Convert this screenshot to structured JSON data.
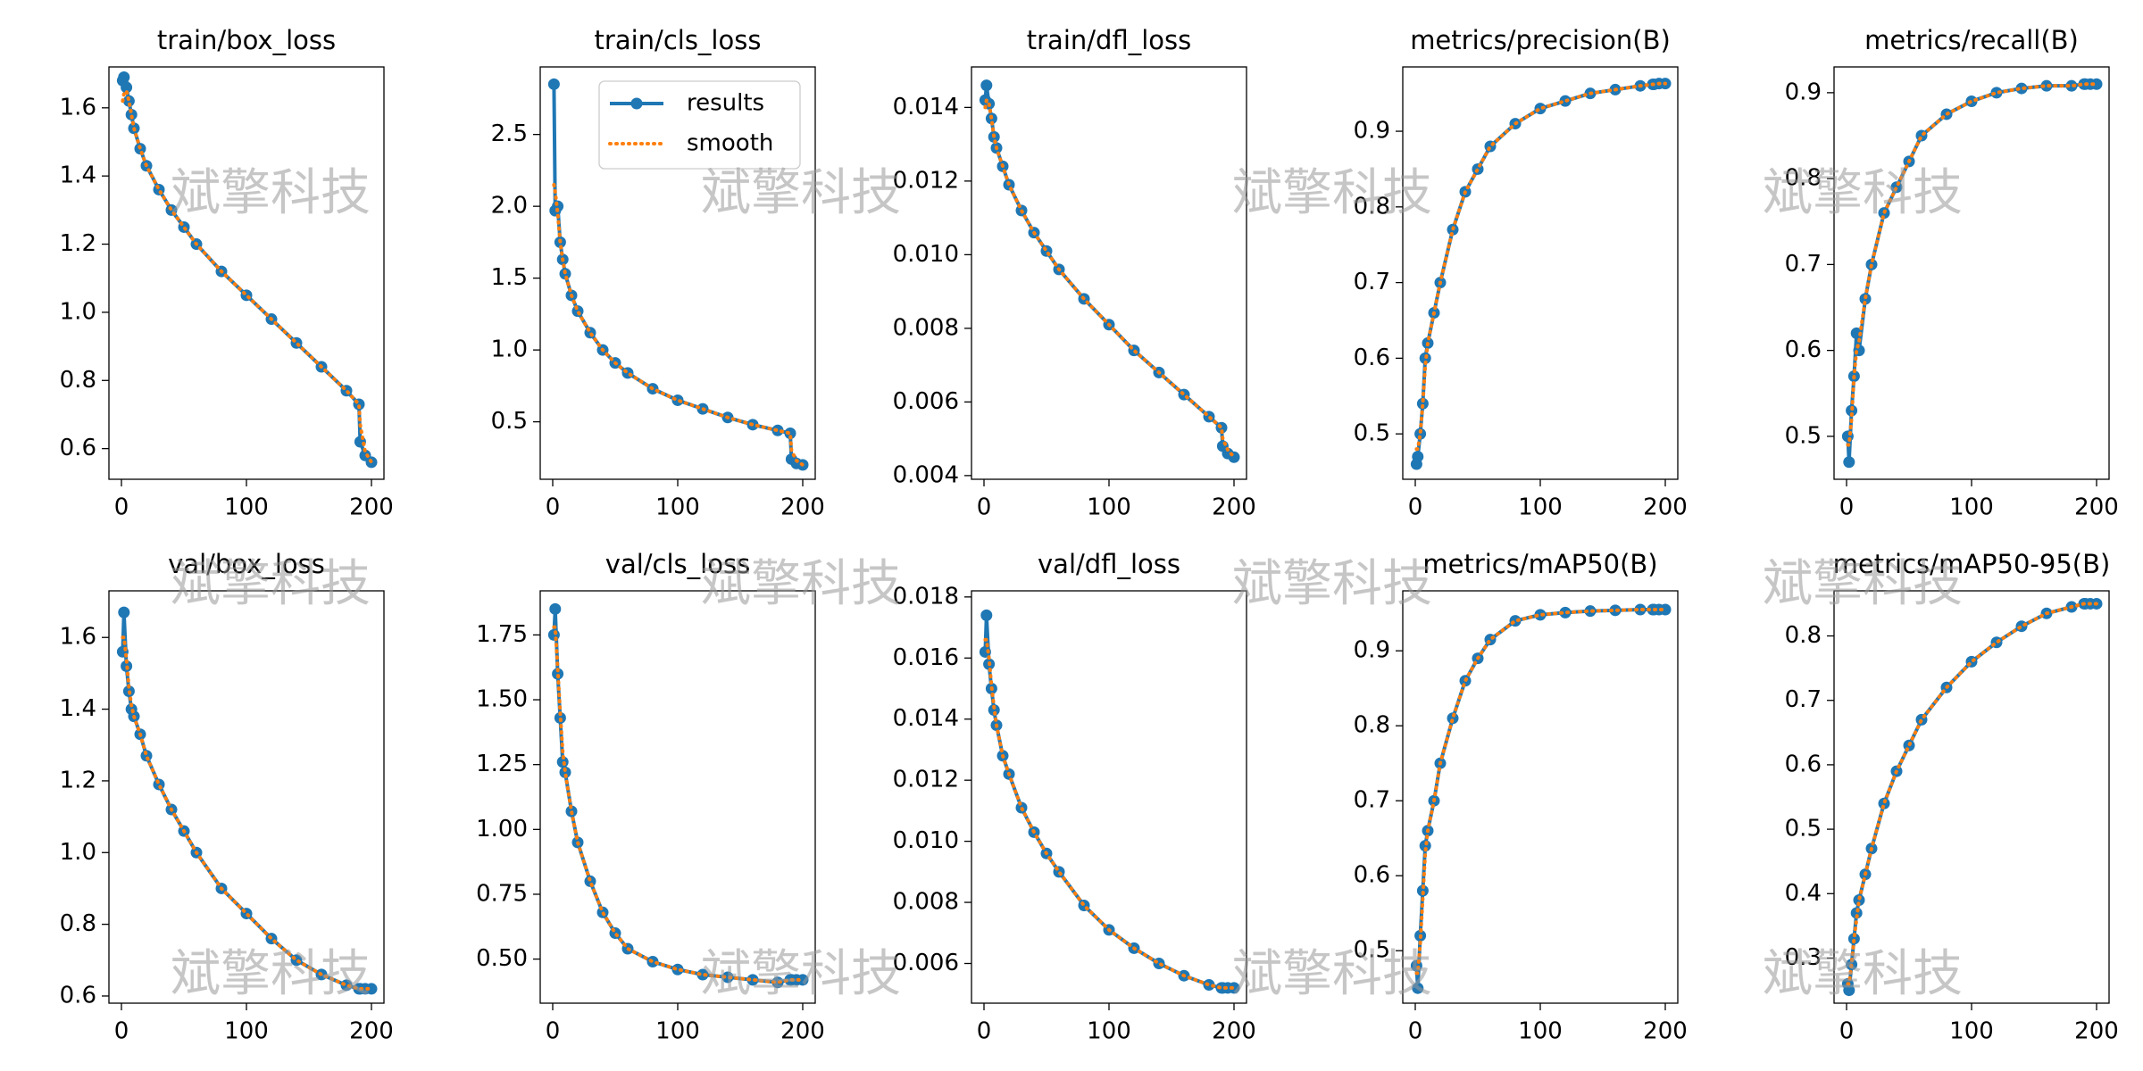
{
  "watermark": "斌擎科技",
  "chart_data": [
    {
      "type": "line",
      "title": "train/box_loss",
      "x": [
        1,
        2,
        4,
        6,
        8,
        10,
        15,
        20,
        30,
        40,
        50,
        60,
        80,
        100,
        120,
        140,
        160,
        180,
        190,
        191,
        195,
        200
      ],
      "xlim": [
        -10,
        210
      ],
      "xticks": [
        0,
        100,
        200
      ],
      "ylim": [
        0.51,
        1.72
      ],
      "yticks": [
        0.6,
        0.8,
        {
          "value": 1,
          "label": "1.0"
        },
        1.2,
        1.4,
        1.6
      ],
      "series": [
        {
          "color": "#1f77b4",
          "values": [
            1.68,
            1.69,
            1.66,
            1.62,
            1.58,
            1.54,
            1.48,
            1.43,
            1.36,
            1.3,
            1.25,
            1.2,
            1.12,
            1.05,
            0.98,
            0.91,
            0.84,
            0.77,
            0.73,
            0.62,
            0.58,
            0.56
          ]
        },
        {
          "color": "#ff7f0e",
          "values": [
            1.62,
            1.64,
            1.65,
            1.62,
            1.58,
            1.54,
            1.48,
            1.43,
            1.36,
            1.3,
            1.25,
            1.2,
            1.12,
            1.05,
            0.98,
            0.91,
            0.84,
            0.77,
            0.73,
            0.67,
            0.59,
            0.56
          ]
        }
      ]
    },
    {
      "type": "line",
      "title": "train/cls_loss",
      "legend": "upper right",
      "x": [
        1,
        2,
        4,
        6,
        8,
        10,
        15,
        20,
        30,
        40,
        50,
        60,
        80,
        100,
        120,
        140,
        160,
        180,
        190,
        191,
        195,
        200
      ],
      "xlim": [
        -10,
        210
      ],
      "xticks": [
        0,
        100,
        200
      ],
      "ylim": [
        0.1,
        2.97
      ],
      "yticks": [
        0.5,
        {
          "value": 1,
          "label": "1.0"
        },
        1.5,
        {
          "value": 2,
          "label": "2.0"
        },
        2.5
      ],
      "series": [
        {
          "name": "results",
          "color": "#1f77b4",
          "values": [
            2.85,
            1.97,
            2.0,
            1.75,
            1.63,
            1.53,
            1.38,
            1.27,
            1.12,
            1.0,
            0.91,
            0.84,
            0.73,
            0.65,
            0.59,
            0.53,
            0.48,
            0.44,
            0.42,
            0.24,
            0.21,
            0.2
          ]
        },
        {
          "name": "smooth",
          "color": "#ff7f0e",
          "values": [
            2.15,
            2.1,
            1.95,
            1.75,
            1.63,
            1.53,
            1.38,
            1.27,
            1.12,
            1.0,
            0.91,
            0.84,
            0.73,
            0.65,
            0.59,
            0.53,
            0.48,
            0.44,
            0.42,
            0.3,
            0.23,
            0.2
          ]
        }
      ]
    },
    {
      "type": "line",
      "title": "train/dfl_loss",
      "x": [
        1,
        2,
        4,
        6,
        8,
        10,
        15,
        20,
        30,
        40,
        50,
        60,
        80,
        100,
        120,
        140,
        160,
        180,
        190,
        191,
        195,
        200
      ],
      "xlim": [
        -10,
        210
      ],
      "xticks": [
        0,
        100,
        200
      ],
      "ylim": [
        0.0039,
        0.0151
      ],
      "yticks": [
        0.004,
        0.006,
        0.008,
        {
          "value": 0.01,
          "label": "0.010"
        },
        0.012,
        0.014
      ],
      "series": [
        {
          "color": "#1f77b4",
          "values": [
            0.0142,
            0.0146,
            0.0141,
            0.0137,
            0.0132,
            0.0129,
            0.0124,
            0.0119,
            0.0112,
            0.0106,
            0.0101,
            0.0096,
            0.0088,
            0.0081,
            0.0074,
            0.0068,
            0.0062,
            0.0056,
            0.0053,
            0.0048,
            0.0046,
            0.0045
          ]
        },
        {
          "color": "#ff7f0e",
          "values": [
            0.014,
            0.0142,
            0.0141,
            0.0137,
            0.0132,
            0.0129,
            0.0124,
            0.0119,
            0.0112,
            0.0106,
            0.0101,
            0.0096,
            0.0088,
            0.0081,
            0.0074,
            0.0068,
            0.0062,
            0.0056,
            0.0053,
            0.005,
            0.0047,
            0.0045
          ]
        }
      ]
    },
    {
      "type": "line",
      "title": "metrics/precision(B)",
      "x": [
        1,
        2,
        4,
        6,
        8,
        10,
        15,
        20,
        30,
        40,
        50,
        60,
        80,
        100,
        120,
        140,
        160,
        180,
        190,
        191,
        195,
        200
      ],
      "xlim": [
        -10,
        210
      ],
      "xticks": [
        0,
        100,
        200
      ],
      "ylim": [
        0.44,
        0.985
      ],
      "yticks": [
        0.5,
        0.6,
        0.7,
        0.8,
        0.9
      ],
      "series": [
        {
          "color": "#1f77b4",
          "values": [
            0.46,
            0.47,
            0.5,
            0.54,
            0.6,
            0.62,
            0.66,
            0.7,
            0.77,
            0.82,
            0.85,
            0.88,
            0.91,
            0.93,
            0.94,
            0.95,
            0.955,
            0.96,
            0.962,
            0.962,
            0.963,
            0.963
          ]
        },
        {
          "color": "#ff7f0e",
          "values": [
            0.48,
            0.48,
            0.5,
            0.54,
            0.59,
            0.62,
            0.66,
            0.7,
            0.77,
            0.82,
            0.85,
            0.88,
            0.91,
            0.93,
            0.94,
            0.95,
            0.955,
            0.96,
            0.962,
            0.962,
            0.963,
            0.963
          ]
        }
      ]
    },
    {
      "type": "line",
      "title": "metrics/recall(B)",
      "x": [
        1,
        2,
        4,
        6,
        8,
        10,
        15,
        20,
        30,
        40,
        50,
        60,
        80,
        100,
        120,
        140,
        160,
        180,
        190,
        191,
        195,
        200
      ],
      "xlim": [
        -10,
        210
      ],
      "xticks": [
        0,
        100,
        200
      ],
      "ylim": [
        0.45,
        0.93
      ],
      "yticks": [
        0.5,
        0.6,
        0.7,
        0.8,
        0.9
      ],
      "series": [
        {
          "color": "#1f77b4",
          "values": [
            0.5,
            0.47,
            0.53,
            0.57,
            0.62,
            0.6,
            0.66,
            0.7,
            0.76,
            0.79,
            0.82,
            0.85,
            0.875,
            0.89,
            0.9,
            0.905,
            0.908,
            0.908,
            0.91,
            0.91,
            0.91,
            0.91
          ]
        },
        {
          "color": "#ff7f0e",
          "values": [
            0.49,
            0.49,
            0.52,
            0.57,
            0.6,
            0.61,
            0.66,
            0.7,
            0.76,
            0.79,
            0.82,
            0.85,
            0.875,
            0.89,
            0.9,
            0.905,
            0.908,
            0.908,
            0.91,
            0.91,
            0.91,
            0.91
          ]
        }
      ]
    },
    {
      "type": "line",
      "title": "val/box_loss",
      "x": [
        1,
        2,
        4,
        6,
        8,
        10,
        15,
        20,
        30,
        40,
        50,
        60,
        80,
        100,
        120,
        140,
        160,
        180,
        190,
        191,
        195,
        200
      ],
      "xlim": [
        -10,
        210
      ],
      "xticks": [
        0,
        100,
        200
      ],
      "ylim": [
        0.58,
        1.73
      ],
      "yticks": [
        0.6,
        0.8,
        {
          "value": 1,
          "label": "1.0"
        },
        1.2,
        1.4,
        1.6
      ],
      "series": [
        {
          "color": "#1f77b4",
          "values": [
            1.56,
            1.67,
            1.52,
            1.45,
            1.4,
            1.38,
            1.33,
            1.27,
            1.19,
            1.12,
            1.06,
            1.0,
            0.9,
            0.83,
            0.76,
            0.7,
            0.66,
            0.63,
            0.62,
            0.62,
            0.62,
            0.62
          ]
        },
        {
          "color": "#ff7f0e",
          "values": [
            1.6,
            1.6,
            1.54,
            1.46,
            1.41,
            1.38,
            1.33,
            1.27,
            1.19,
            1.12,
            1.06,
            1.0,
            0.9,
            0.83,
            0.76,
            0.7,
            0.66,
            0.63,
            0.62,
            0.62,
            0.62,
            0.62
          ]
        }
      ]
    },
    {
      "type": "line",
      "title": "val/cls_loss",
      "x": [
        1,
        2,
        4,
        6,
        8,
        10,
        15,
        20,
        30,
        40,
        50,
        60,
        80,
        100,
        120,
        140,
        160,
        180,
        190,
        191,
        195,
        200
      ],
      "xlim": [
        -10,
        210
      ],
      "xticks": [
        0,
        100,
        200
      ],
      "ylim": [
        0.33,
        1.92
      ],
      "yticks": [
        {
          "value": 0.5,
          "label": "0.50"
        },
        0.75,
        {
          "value": 1,
          "label": "1.00"
        },
        1.25,
        {
          "value": 1.5,
          "label": "1.50"
        },
        1.75
      ],
      "series": [
        {
          "color": "#1f77b4",
          "values": [
            1.75,
            1.85,
            1.6,
            1.43,
            1.26,
            1.22,
            1.07,
            0.95,
            0.8,
            0.68,
            0.6,
            0.54,
            0.49,
            0.46,
            0.44,
            0.43,
            0.42,
            0.41,
            0.42,
            0.42,
            0.42,
            0.42
          ]
        },
        {
          "color": "#ff7f0e",
          "values": [
            1.78,
            1.78,
            1.62,
            1.45,
            1.3,
            1.22,
            1.07,
            0.95,
            0.8,
            0.68,
            0.6,
            0.54,
            0.49,
            0.46,
            0.44,
            0.43,
            0.42,
            0.41,
            0.42,
            0.42,
            0.42,
            0.42
          ]
        }
      ]
    },
    {
      "type": "line",
      "title": "val/dfl_loss",
      "x": [
        1,
        2,
        4,
        6,
        8,
        10,
        15,
        20,
        30,
        40,
        50,
        60,
        80,
        100,
        120,
        140,
        160,
        180,
        190,
        191,
        195,
        200
      ],
      "xlim": [
        -10,
        210
      ],
      "xticks": [
        0,
        100,
        200
      ],
      "ylim": [
        0.0047,
        0.0182
      ],
      "yticks": [
        0.006,
        0.008,
        {
          "value": 0.01,
          "label": "0.010"
        },
        0.012,
        0.014,
        0.016,
        0.018
      ],
      "series": [
        {
          "color": "#1f77b4",
          "values": [
            0.0162,
            0.0174,
            0.0158,
            0.015,
            0.0143,
            0.0138,
            0.0128,
            0.0122,
            0.0111,
            0.0103,
            0.0096,
            0.009,
            0.0079,
            0.0071,
            0.0065,
            0.006,
            0.0056,
            0.0053,
            0.0052,
            0.0052,
            0.0052,
            0.0052
          ]
        },
        {
          "color": "#ff7f0e",
          "values": [
            0.0166,
            0.0166,
            0.016,
            0.0151,
            0.0144,
            0.0138,
            0.0128,
            0.0122,
            0.0111,
            0.0103,
            0.0096,
            0.009,
            0.0079,
            0.0071,
            0.0065,
            0.006,
            0.0056,
            0.0053,
            0.0052,
            0.0052,
            0.0052,
            0.0052
          ]
        }
      ]
    },
    {
      "type": "line",
      "title": "metrics/mAP50(B)",
      "x": [
        1,
        2,
        4,
        6,
        8,
        10,
        15,
        20,
        30,
        40,
        50,
        60,
        80,
        100,
        120,
        140,
        160,
        180,
        190,
        191,
        195,
        200
      ],
      "xlim": [
        -10,
        210
      ],
      "xticks": [
        0,
        100,
        200
      ],
      "ylim": [
        0.43,
        0.98
      ],
      "yticks": [
        0.5,
        0.6,
        0.7,
        0.8,
        0.9
      ],
      "series": [
        {
          "color": "#1f77b4",
          "values": [
            0.48,
            0.45,
            0.52,
            0.58,
            0.64,
            0.66,
            0.7,
            0.75,
            0.81,
            0.86,
            0.89,
            0.915,
            0.94,
            0.948,
            0.951,
            0.953,
            0.954,
            0.955,
            0.955,
            0.955,
            0.955,
            0.955
          ]
        },
        {
          "color": "#ff7f0e",
          "values": [
            0.47,
            0.47,
            0.51,
            0.57,
            0.63,
            0.66,
            0.7,
            0.75,
            0.81,
            0.86,
            0.89,
            0.915,
            0.94,
            0.948,
            0.951,
            0.953,
            0.954,
            0.955,
            0.955,
            0.955,
            0.955,
            0.955
          ]
        }
      ]
    },
    {
      "type": "line",
      "title": "metrics/mAP50-95(B)",
      "x": [
        1,
        2,
        4,
        6,
        8,
        10,
        15,
        20,
        30,
        40,
        50,
        60,
        80,
        100,
        120,
        140,
        160,
        180,
        190,
        191,
        195,
        200
      ],
      "xlim": [
        -10,
        210
      ],
      "xticks": [
        0,
        100,
        200
      ],
      "ylim": [
        0.23,
        0.87
      ],
      "yticks": [
        0.3,
        0.4,
        0.5,
        0.6,
        0.7,
        0.8
      ],
      "series": [
        {
          "color": "#1f77b4",
          "values": [
            0.26,
            0.25,
            0.29,
            0.33,
            0.37,
            0.39,
            0.43,
            0.47,
            0.54,
            0.59,
            0.63,
            0.67,
            0.72,
            0.76,
            0.79,
            0.815,
            0.835,
            0.845,
            0.85,
            0.85,
            0.85,
            0.85
          ]
        },
        {
          "color": "#ff7f0e",
          "values": [
            0.26,
            0.26,
            0.29,
            0.33,
            0.36,
            0.39,
            0.43,
            0.47,
            0.54,
            0.59,
            0.63,
            0.67,
            0.72,
            0.76,
            0.79,
            0.815,
            0.835,
            0.845,
            0.85,
            0.85,
            0.85,
            0.85
          ]
        }
      ]
    }
  ]
}
